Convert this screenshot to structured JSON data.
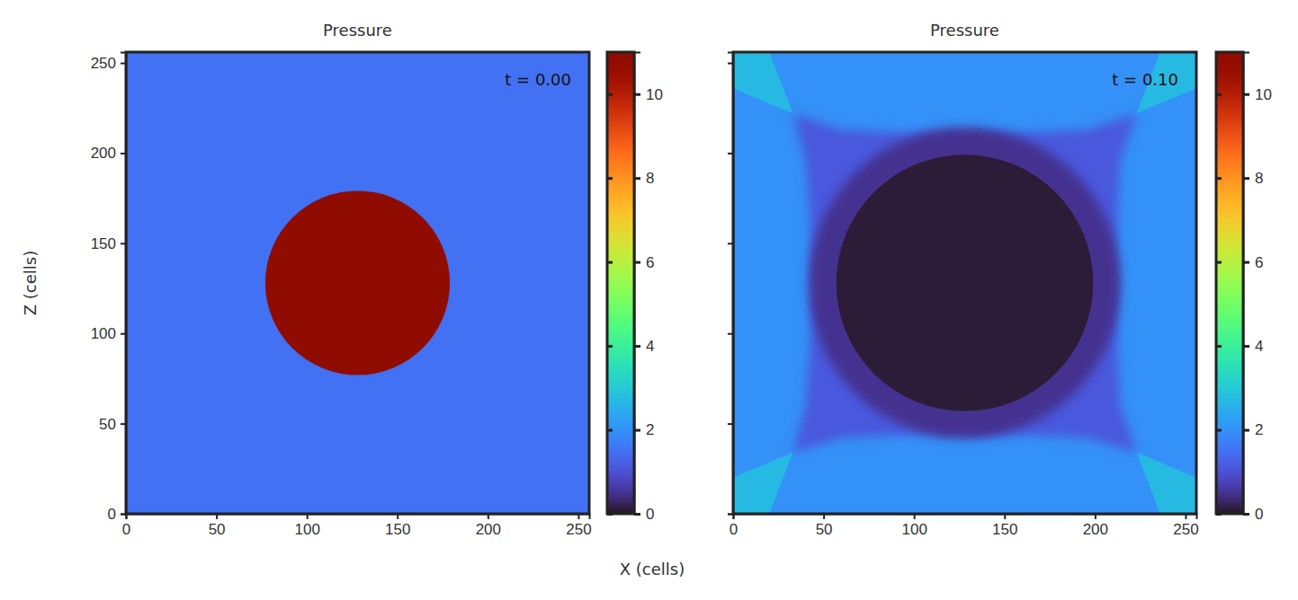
{
  "chart_data": {
    "type": "heatmap",
    "x_label": "X (cells)",
    "y_label": "Z (cells)",
    "panels": [
      {
        "title": "Pressure",
        "annotation": "t = 0.00",
        "xlim": [
          0,
          256
        ],
        "ylim": [
          0,
          256
        ],
        "xticks": [
          0,
          50,
          100,
          150,
          200,
          250
        ],
        "yticks": [
          0,
          50,
          100,
          150,
          200,
          250
        ],
        "colorbar": {
          "range": [
            0,
            11
          ],
          "ticks": [
            0,
            2,
            4,
            6,
            8,
            10
          ]
        },
        "regions": [
          {
            "shape": "rect",
            "x": [
              0,
              256
            ],
            "z": [
              0,
              256
            ],
            "value": 1.5
          },
          {
            "shape": "circle",
            "center": [
              128,
              128
            ],
            "radius": 51,
            "value": 11
          }
        ]
      },
      {
        "title": "Pressure",
        "annotation": "t = 0.10",
        "xlim": [
          0,
          256
        ],
        "ylim": [
          0,
          256
        ],
        "xticks": [
          0,
          50,
          100,
          150,
          200,
          250
        ],
        "yticks": [
          0,
          50,
          100,
          150,
          200,
          250
        ],
        "tick_labels": "x",
        "colorbar": {
          "range": [
            0,
            11
          ],
          "ticks": [
            0,
            2,
            4,
            6,
            8,
            10
          ]
        },
        "regions": [
          {
            "shape": "rect",
            "x": [
              0,
              256
            ],
            "z": [
              0,
              256
            ],
            "value": 2.0
          },
          {
            "shape": "polygon",
            "points": [
              [
                0,
                256
              ],
              [
                0,
                236
              ],
              [
                33,
                222
              ],
              [
                20,
                256
              ]
            ],
            "value": 2.7
          },
          {
            "shape": "polygon",
            "points": [
              [
                256,
                256
              ],
              [
                236,
                256
              ],
              [
                223,
                222
              ],
              [
                256,
                236
              ]
            ],
            "value": 2.7
          },
          {
            "shape": "polygon",
            "points": [
              [
                0,
                0
              ],
              [
                20,
                0
              ],
              [
                33,
                34
              ],
              [
                0,
                20
              ]
            ],
            "value": 2.7
          },
          {
            "shape": "polygon",
            "points": [
              [
                256,
                0
              ],
              [
                256,
                20
              ],
              [
                223,
                34
              ],
              [
                236,
                0
              ]
            ],
            "value": 2.7
          },
          {
            "shape": "polygon",
            "points": [
              [
                33,
                222
              ],
              [
                60,
                213
              ],
              [
                100,
                211
              ],
              [
                128,
                211
              ],
              [
                156,
                211
              ],
              [
                196,
                213
              ],
              [
                223,
                222
              ],
              [
                214,
                196
              ],
              [
                212,
                156
              ],
              [
                212,
                128
              ],
              [
                212,
                100
              ],
              [
                214,
                60
              ],
              [
                223,
                34
              ],
              [
                196,
                42
              ],
              [
                156,
                44
              ],
              [
                128,
                44
              ],
              [
                100,
                44
              ],
              [
                60,
                42
              ],
              [
                33,
                34
              ],
              [
                40,
                60
              ],
              [
                43,
                100
              ],
              [
                43,
                128
              ],
              [
                43,
                156
              ],
              [
                40,
                196
              ]
            ],
            "value": 1.1
          },
          {
            "shape": "circle",
            "center": [
              128,
              128
            ],
            "radius": 86,
            "value": 0.5
          },
          {
            "shape": "circle",
            "center": [
              128,
              128
            ],
            "radius": 71,
            "value": 0.1
          }
        ]
      }
    ]
  }
}
